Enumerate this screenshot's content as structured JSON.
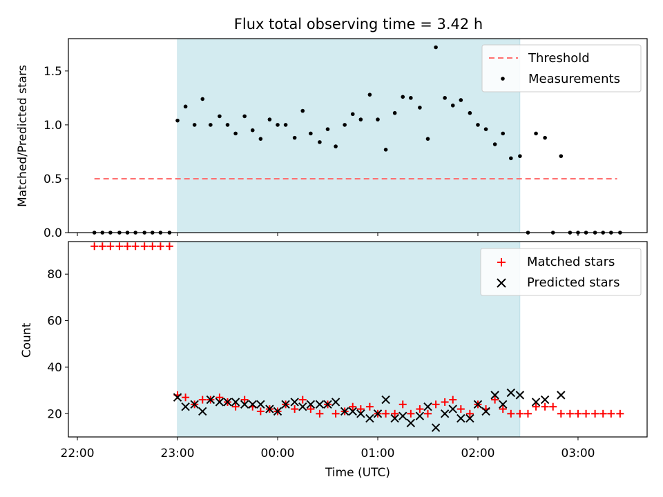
{
  "title": "Flux total observing time = 3.42 h",
  "xlabel": "Time (UTC)",
  "x_ticks": [
    "22:00",
    "23:00",
    "00:00",
    "01:00",
    "02:00",
    "03:00"
  ],
  "x_tick_hours": [
    22,
    23,
    24,
    25,
    26,
    27
  ],
  "x_range_hours": [
    21.91,
    27.69
  ],
  "shaded_span_hours": [
    23.0,
    26.42
  ],
  "colors": {
    "shade": "#d3ebf0",
    "threshold": "#ff6e6e",
    "measurements": "#000000",
    "matched": "#ff0000",
    "predicted": "#000000"
  },
  "chart_data": [
    {
      "type": "scatter",
      "ylabel": "Matched/Predicted stars",
      "ylim": [
        0,
        1.8
      ],
      "y_ticks": [
        0.0,
        0.5,
        1.0,
        1.5
      ],
      "y_tick_labels": [
        "0.0",
        "0.5",
        "1.0",
        "1.5"
      ],
      "legend_position": "top-right",
      "threshold": {
        "name": "Threshold",
        "y": 0.5,
        "x_range": [
          22.17,
          27.39
        ]
      },
      "series": [
        {
          "name": "Measurements",
          "x": [
            22.17,
            22.25,
            22.33,
            22.42,
            22.5,
            22.58,
            22.67,
            22.75,
            22.83,
            22.92,
            23.0,
            23.08,
            23.17,
            23.25,
            23.33,
            23.42,
            23.5,
            23.58,
            23.67,
            23.75,
            23.83,
            23.92,
            24.0,
            24.08,
            24.17,
            24.25,
            24.33,
            24.42,
            24.5,
            24.58,
            24.67,
            24.75,
            24.83,
            24.92,
            25.0,
            25.08,
            25.17,
            25.25,
            25.33,
            25.42,
            25.5,
            25.58,
            25.67,
            25.75,
            25.83,
            25.92,
            26.0,
            26.08,
            26.17,
            26.25,
            26.33,
            26.42,
            26.5,
            26.58,
            26.67,
            26.75,
            26.83,
            26.92,
            27.0,
            27.08,
            27.17,
            27.25,
            27.33,
            27.42
          ],
          "y": [
            0,
            0,
            0,
            0,
            0,
            0,
            0,
            0,
            0,
            0,
            1.04,
            1.17,
            1.0,
            1.24,
            1.0,
            1.08,
            1.0,
            0.92,
            1.08,
            0.95,
            0.87,
            1.05,
            1.0,
            1.0,
            0.88,
            1.13,
            0.92,
            0.84,
            0.96,
            0.8,
            1.0,
            1.1,
            1.05,
            1.28,
            1.05,
            0.77,
            1.11,
            1.26,
            1.25,
            1.16,
            0.87,
            1.72,
            1.25,
            1.18,
            1.23,
            1.11,
            1.0,
            0.96,
            0.82,
            0.92,
            0.69,
            0.71,
            0,
            0.92,
            0.88,
            0,
            0.71,
            0,
            0,
            0,
            0,
            0,
            0,
            0
          ]
        }
      ]
    },
    {
      "type": "scatter",
      "ylabel": "Count",
      "ylim": [
        10,
        94
      ],
      "y_ticks": [
        20,
        40,
        60,
        80
      ],
      "y_tick_labels": [
        "20",
        "40",
        "60",
        "80"
      ],
      "legend_position": "top-right",
      "series": [
        {
          "name": "Matched stars",
          "marker": "plus",
          "x": [
            22.17,
            22.25,
            22.33,
            22.42,
            22.5,
            22.58,
            22.67,
            22.75,
            22.83,
            22.92,
            23.0,
            23.08,
            23.17,
            23.25,
            23.33,
            23.42,
            23.5,
            23.58,
            23.67,
            23.75,
            23.83,
            23.92,
            24.0,
            24.08,
            24.17,
            24.25,
            24.33,
            24.42,
            24.5,
            24.58,
            24.67,
            24.75,
            24.83,
            24.92,
            25.0,
            25.08,
            25.17,
            25.25,
            25.33,
            25.42,
            25.5,
            25.58,
            25.67,
            25.75,
            25.83,
            25.92,
            26.0,
            26.08,
            26.17,
            26.25,
            26.33,
            26.42,
            26.5,
            26.58,
            26.67,
            26.75,
            26.83,
            26.92,
            27.0,
            27.08,
            27.17,
            27.25,
            27.33,
            27.42
          ],
          "y": [
            92,
            92,
            92,
            92,
            92,
            92,
            92,
            92,
            92,
            92,
            28,
            27,
            24,
            26,
            26,
            27,
            25,
            23,
            26,
            23,
            21,
            22,
            21,
            24,
            22,
            26,
            22,
            20,
            24,
            20,
            21,
            23,
            22,
            23,
            20,
            20,
            20,
            24,
            20,
            22,
            20,
            24,
            25,
            26,
            22,
            20,
            24,
            22,
            26,
            22,
            20,
            20,
            20,
            23,
            23,
            23,
            20,
            20,
            20,
            20,
            20,
            20,
            20,
            20
          ]
        },
        {
          "name": "Predicted stars",
          "marker": "x",
          "x": [
            23.0,
            23.08,
            23.17,
            23.25,
            23.33,
            23.42,
            23.5,
            23.58,
            23.67,
            23.75,
            23.83,
            23.92,
            24.0,
            24.08,
            24.17,
            24.25,
            24.33,
            24.42,
            24.5,
            24.58,
            24.67,
            24.75,
            24.83,
            24.92,
            25.0,
            25.08,
            25.17,
            25.25,
            25.33,
            25.42,
            25.5,
            25.58,
            25.67,
            25.75,
            25.83,
            25.92,
            26.0,
            26.08,
            26.17,
            26.25,
            26.33,
            26.42,
            26.58,
            26.67,
            26.83
          ],
          "y": [
            27,
            23,
            24,
            21,
            26,
            25,
            25,
            25,
            24,
            24,
            24,
            22,
            21,
            24,
            25,
            23,
            24,
            24,
            24,
            25,
            21,
            21,
            20,
            18,
            20,
            26,
            18,
            19,
            16,
            19,
            23,
            14,
            20,
            22,
            18,
            18,
            24,
            21,
            28,
            24,
            29,
            28,
            25,
            26,
            28
          ]
        }
      ]
    }
  ]
}
